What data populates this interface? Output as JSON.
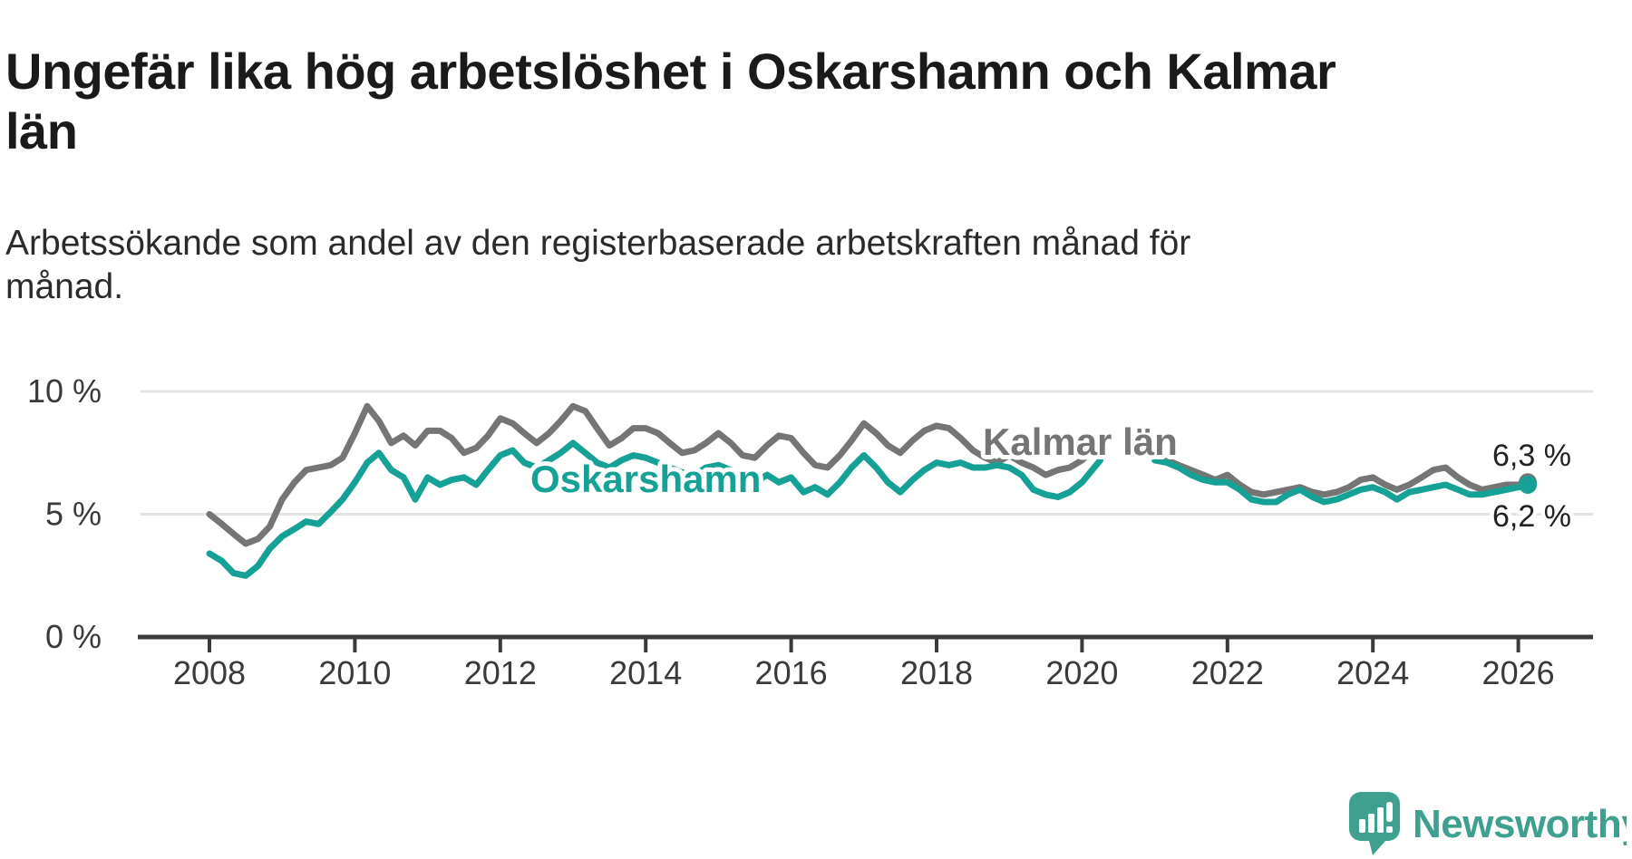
{
  "header": {
    "title": "Ungefär lika hög arbetslöshet i Oskarshamn och Kalmar län",
    "title_lines": [
      "Ungefär lika hög arbetslöshet i Oskarshamn och Kalmar",
      "län"
    ],
    "subtitle": "Arbetssökande som andel av den registerbaserade arbetskraften månad för månad.",
    "subtitle_lines": [
      "Arbetssökande som andel av den registerbaserade arbetskraften månad för",
      "månad."
    ]
  },
  "branding": {
    "wordmark": "Newsworthy",
    "brand_color": "#3fa08f",
    "icon": "newsworthy-chart-bubble-icon"
  },
  "chart_data": {
    "type": "line",
    "title": "Ungefär lika hög arbetslöshet i Oskarshamn och Kalmar län",
    "xlabel": "",
    "ylabel": "",
    "y_unit": "%",
    "grid": "horizontal",
    "legend_position": "inline-labels",
    "x_range_years": [
      2007.3,
      2026.8
    ],
    "ylim": [
      0,
      10
    ],
    "x_ticks": [
      2008,
      2010,
      2012,
      2014,
      2016,
      2018,
      2020,
      2022,
      2024,
      2026
    ],
    "y_ticks": [
      {
        "value": 0,
        "label": "0 %"
      },
      {
        "value": 5,
        "label": "5 %"
      },
      {
        "value": 10,
        "label": "10 %"
      }
    ],
    "data_gap": {
      "from": 2020.25,
      "to": 2021.0
    },
    "series": [
      {
        "name": "Kalmar län",
        "color": "#757575",
        "end_label": "6,3 %",
        "end_value": 6.3,
        "segments": [
          [
            [
              2008.0,
              5.0
            ],
            [
              2008.17,
              4.6
            ],
            [
              2008.33,
              4.2
            ],
            [
              2008.5,
              3.8
            ],
            [
              2008.67,
              4.0
            ],
            [
              2008.83,
              4.5
            ],
            [
              2009.0,
              5.6
            ],
            [
              2009.17,
              6.3
            ],
            [
              2009.33,
              6.8
            ],
            [
              2009.5,
              6.9
            ],
            [
              2009.67,
              7.0
            ],
            [
              2009.83,
              7.3
            ],
            [
              2010.0,
              8.3
            ],
            [
              2010.17,
              9.4
            ],
            [
              2010.33,
              8.8
            ],
            [
              2010.5,
              7.9
            ],
            [
              2010.67,
              8.2
            ],
            [
              2010.83,
              7.8
            ],
            [
              2011.0,
              8.4
            ],
            [
              2011.17,
              8.4
            ],
            [
              2011.33,
              8.1
            ],
            [
              2011.5,
              7.5
            ],
            [
              2011.67,
              7.7
            ],
            [
              2011.83,
              8.2
            ],
            [
              2012.0,
              8.9
            ],
            [
              2012.17,
              8.7
            ],
            [
              2012.33,
              8.3
            ],
            [
              2012.5,
              7.9
            ],
            [
              2012.67,
              8.3
            ],
            [
              2012.83,
              8.8
            ],
            [
              2013.0,
              9.4
            ],
            [
              2013.17,
              9.2
            ],
            [
              2013.33,
              8.5
            ],
            [
              2013.5,
              7.8
            ],
            [
              2013.67,
              8.1
            ],
            [
              2013.83,
              8.5
            ],
            [
              2014.0,
              8.5
            ],
            [
              2014.17,
              8.3
            ],
            [
              2014.33,
              7.9
            ],
            [
              2014.5,
              7.5
            ],
            [
              2014.67,
              7.6
            ],
            [
              2014.83,
              7.9
            ],
            [
              2015.0,
              8.3
            ],
            [
              2015.17,
              7.9
            ],
            [
              2015.33,
              7.4
            ],
            [
              2015.5,
              7.3
            ],
            [
              2015.67,
              7.8
            ],
            [
              2015.83,
              8.2
            ],
            [
              2016.0,
              8.1
            ],
            [
              2016.17,
              7.5
            ],
            [
              2016.33,
              7.0
            ],
            [
              2016.5,
              6.9
            ],
            [
              2016.67,
              7.4
            ],
            [
              2016.83,
              8.0
            ],
            [
              2017.0,
              8.7
            ],
            [
              2017.17,
              8.3
            ],
            [
              2017.33,
              7.8
            ],
            [
              2017.5,
              7.5
            ],
            [
              2017.67,
              8.0
            ],
            [
              2017.83,
              8.4
            ],
            [
              2018.0,
              8.6
            ],
            [
              2018.17,
              8.5
            ],
            [
              2018.33,
              8.1
            ],
            [
              2018.5,
              7.6
            ],
            [
              2018.67,
              7.3
            ],
            [
              2018.83,
              7.1
            ],
            [
              2019.0,
              7.4
            ],
            [
              2019.17,
              7.1
            ],
            [
              2019.33,
              6.9
            ],
            [
              2019.5,
              6.6
            ],
            [
              2019.67,
              6.8
            ],
            [
              2019.83,
              6.9
            ],
            [
              2020.0,
              7.2
            ],
            [
              2020.25,
              7.9
            ]
          ],
          [
            [
              2021.0,
              7.3
            ],
            [
              2021.17,
              7.2
            ],
            [
              2021.33,
              7.0
            ],
            [
              2021.5,
              6.8
            ],
            [
              2021.67,
              6.6
            ],
            [
              2021.83,
              6.4
            ],
            [
              2022.0,
              6.6
            ],
            [
              2022.17,
              6.2
            ],
            [
              2022.33,
              5.9
            ],
            [
              2022.5,
              5.8
            ],
            [
              2022.67,
              5.9
            ],
            [
              2022.83,
              6.0
            ],
            [
              2023.0,
              6.1
            ],
            [
              2023.17,
              5.9
            ],
            [
              2023.33,
              5.8
            ],
            [
              2023.5,
              5.9
            ],
            [
              2023.67,
              6.1
            ],
            [
              2023.83,
              6.4
            ],
            [
              2024.0,
              6.5
            ],
            [
              2024.17,
              6.2
            ],
            [
              2024.33,
              6.0
            ],
            [
              2024.5,
              6.2
            ],
            [
              2024.67,
              6.5
            ],
            [
              2024.83,
              6.8
            ],
            [
              2025.0,
              6.9
            ],
            [
              2025.17,
              6.5
            ],
            [
              2025.33,
              6.2
            ],
            [
              2025.5,
              6.0
            ],
            [
              2025.67,
              6.1
            ],
            [
              2025.83,
              6.2
            ],
            [
              2026.0,
              6.2
            ],
            [
              2026.13,
              6.3
            ]
          ]
        ]
      },
      {
        "name": "Oskarshamn",
        "color": "#15a195",
        "end_label": "6,2 %",
        "end_value": 6.2,
        "segments": [
          [
            [
              2008.0,
              3.4
            ],
            [
              2008.17,
              3.1
            ],
            [
              2008.33,
              2.6
            ],
            [
              2008.5,
              2.5
            ],
            [
              2008.67,
              2.9
            ],
            [
              2008.83,
              3.6
            ],
            [
              2009.0,
              4.1
            ],
            [
              2009.17,
              4.4
            ],
            [
              2009.33,
              4.7
            ],
            [
              2009.5,
              4.6
            ],
            [
              2009.67,
              5.1
            ],
            [
              2009.83,
              5.6
            ],
            [
              2010.0,
              6.3
            ],
            [
              2010.17,
              7.1
            ],
            [
              2010.33,
              7.5
            ],
            [
              2010.5,
              6.8
            ],
            [
              2010.67,
              6.5
            ],
            [
              2010.83,
              5.6
            ],
            [
              2011.0,
              6.5
            ],
            [
              2011.17,
              6.2
            ],
            [
              2011.33,
              6.4
            ],
            [
              2011.5,
              6.5
            ],
            [
              2011.67,
              6.2
            ],
            [
              2011.83,
              6.8
            ],
            [
              2012.0,
              7.4
            ],
            [
              2012.17,
              7.6
            ],
            [
              2012.33,
              7.1
            ],
            [
              2012.5,
              6.9
            ],
            [
              2012.67,
              7.2
            ],
            [
              2012.83,
              7.5
            ],
            [
              2013.0,
              7.9
            ],
            [
              2013.17,
              7.5
            ],
            [
              2013.33,
              7.1
            ],
            [
              2013.5,
              6.9
            ],
            [
              2013.67,
              7.2
            ],
            [
              2013.83,
              7.4
            ],
            [
              2014.0,
              7.3
            ],
            [
              2014.17,
              7.1
            ],
            [
              2014.33,
              6.9
            ],
            [
              2014.5,
              6.7
            ],
            [
              2014.67,
              6.6
            ],
            [
              2014.83,
              6.9
            ],
            [
              2015.0,
              7.0
            ],
            [
              2015.17,
              6.8
            ],
            [
              2015.33,
              6.4
            ],
            [
              2015.5,
              6.3
            ],
            [
              2015.67,
              6.6
            ],
            [
              2015.83,
              6.3
            ],
            [
              2016.0,
              6.5
            ],
            [
              2016.17,
              5.9
            ],
            [
              2016.33,
              6.1
            ],
            [
              2016.5,
              5.8
            ],
            [
              2016.67,
              6.3
            ],
            [
              2016.83,
              6.9
            ],
            [
              2017.0,
              7.4
            ],
            [
              2017.17,
              6.9
            ],
            [
              2017.33,
              6.3
            ],
            [
              2017.5,
              5.9
            ],
            [
              2017.67,
              6.4
            ],
            [
              2017.83,
              6.8
            ],
            [
              2018.0,
              7.1
            ],
            [
              2018.17,
              7.0
            ],
            [
              2018.33,
              7.1
            ],
            [
              2018.5,
              6.9
            ],
            [
              2018.67,
              6.9
            ],
            [
              2018.83,
              7.0
            ],
            [
              2019.0,
              6.9
            ],
            [
              2019.17,
              6.6
            ],
            [
              2019.33,
              6.0
            ],
            [
              2019.5,
              5.8
            ],
            [
              2019.67,
              5.7
            ],
            [
              2019.83,
              5.9
            ],
            [
              2020.0,
              6.3
            ],
            [
              2020.25,
              7.2
            ]
          ],
          [
            [
              2021.0,
              7.2
            ],
            [
              2021.17,
              7.1
            ],
            [
              2021.33,
              6.9
            ],
            [
              2021.5,
              6.6
            ],
            [
              2021.67,
              6.4
            ],
            [
              2021.83,
              6.3
            ],
            [
              2022.0,
              6.3
            ],
            [
              2022.17,
              6.0
            ],
            [
              2022.33,
              5.6
            ],
            [
              2022.5,
              5.5
            ],
            [
              2022.67,
              5.5
            ],
            [
              2022.83,
              5.8
            ],
            [
              2023.0,
              6.0
            ],
            [
              2023.17,
              5.7
            ],
            [
              2023.33,
              5.5
            ],
            [
              2023.5,
              5.6
            ],
            [
              2023.67,
              5.8
            ],
            [
              2023.83,
              6.0
            ],
            [
              2024.0,
              6.1
            ],
            [
              2024.17,
              5.9
            ],
            [
              2024.33,
              5.6
            ],
            [
              2024.5,
              5.9
            ],
            [
              2024.67,
              6.0
            ],
            [
              2024.83,
              6.1
            ],
            [
              2025.0,
              6.2
            ],
            [
              2025.17,
              6.0
            ],
            [
              2025.33,
              5.8
            ],
            [
              2025.5,
              5.8
            ],
            [
              2025.67,
              5.9
            ],
            [
              2025.83,
              6.0
            ],
            [
              2026.0,
              6.1
            ],
            [
              2026.13,
              6.2
            ]
          ]
        ]
      }
    ]
  }
}
